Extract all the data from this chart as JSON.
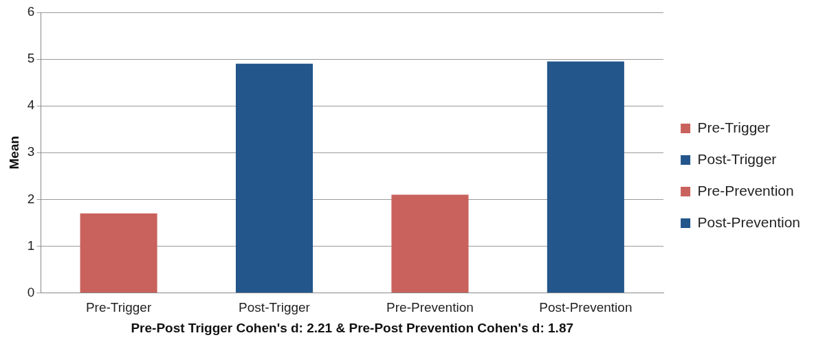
{
  "chart_data": {
    "type": "bar",
    "ylabel": "Mean",
    "xlabel": "Pre-Post Trigger Cohen's d: 2.21 & Pre-Post Prevention Cohen's d: 1.87",
    "categories": [
      "Pre-Trigger",
      "Post-Trigger",
      "Pre-Prevention",
      "Post-Prevention"
    ],
    "series": [
      {
        "name": "Pre-Trigger",
        "color": "#c9625c",
        "values": [
          1.7,
          null,
          null,
          null
        ]
      },
      {
        "name": "Post-Trigger",
        "color": "#23568b",
        "values": [
          null,
          4.9,
          null,
          null
        ]
      },
      {
        "name": "Pre-Prevention",
        "color": "#c9625c",
        "values": [
          null,
          null,
          2.1,
          null
        ]
      },
      {
        "name": "Post-Prevention",
        "color": "#23568b",
        "values": [
          null,
          null,
          null,
          4.95
        ]
      }
    ],
    "ylim": [
      0,
      6
    ],
    "yticks": [
      0,
      1,
      2,
      3,
      4,
      5,
      6
    ],
    "grid": "y",
    "legend": "right"
  }
}
